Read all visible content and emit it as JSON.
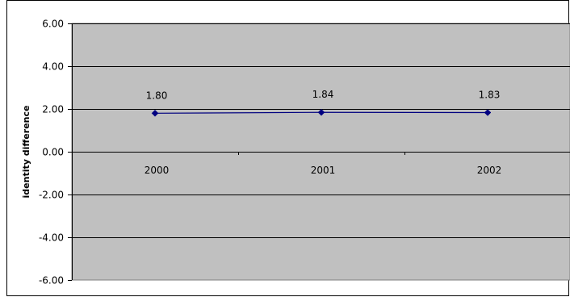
{
  "chart_data": {
    "type": "line",
    "title": "",
    "xlabel": "",
    "ylabel": "identity difference",
    "categories": [
      "2000",
      "2001",
      "2002"
    ],
    "series": [
      {
        "values": [
          1.8,
          1.84,
          1.83
        ],
        "color": "#000080"
      }
    ],
    "data_labels": [
      "1.80",
      "1.84",
      "1.83"
    ],
    "ylim": [
      -6,
      6
    ],
    "y_ticks": [
      6,
      4,
      2,
      0,
      -2,
      -4,
      -6
    ],
    "y_tick_labels": [
      "6.00",
      "4.00",
      "2.00",
      "0.00",
      "-2.00",
      "-4.00",
      "-6.00"
    ],
    "grid": true,
    "legend": "none",
    "colors": {
      "plot_background": "#c0c0c0",
      "line": "#000080",
      "marker": "#000080"
    }
  }
}
